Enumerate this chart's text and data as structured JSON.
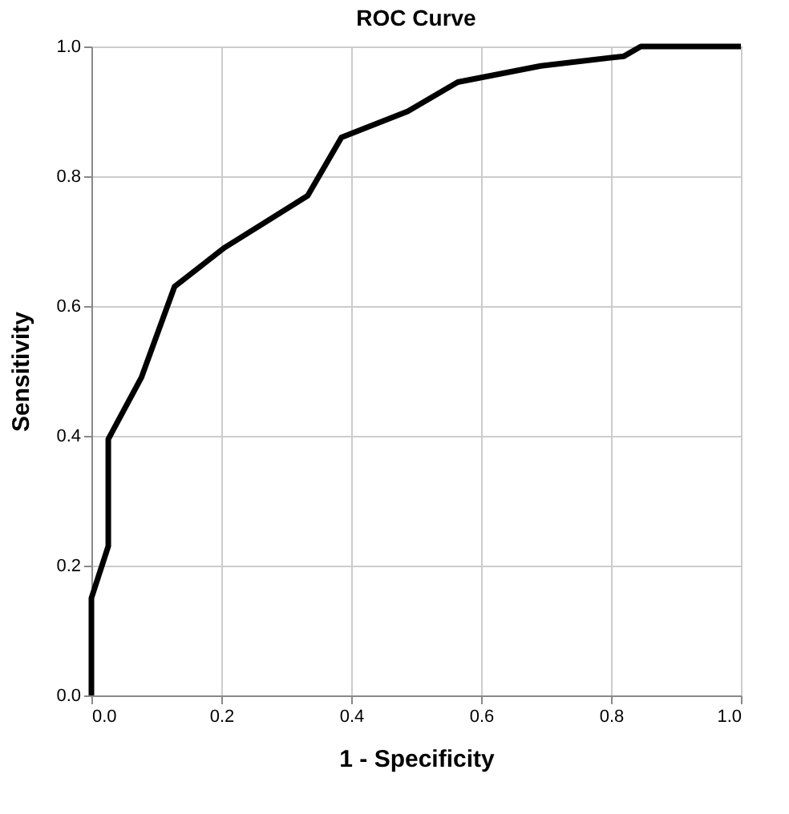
{
  "chart_data": {
    "type": "line",
    "title": "ROC Curve",
    "xlabel": "1 - Specificity",
    "ylabel": "Sensitivity",
    "x": [
      0,
      0,
      0.026,
      0.026,
      0.077,
      0.128,
      0.205,
      0.333,
      0.385,
      0.487,
      0.564,
      0.692,
      0.82,
      0.846,
      1.0
    ],
    "series": [
      {
        "color": "#000000",
        "values": [
          0,
          0.15,
          0.23,
          0.395,
          0.49,
          0.63,
          0.69,
          0.77,
          0.86,
          0.9,
          0.945,
          0.97,
          0.985,
          1.0,
          1.0
        ]
      }
    ],
    "xlim": [
      0,
      1
    ],
    "ylim": [
      0,
      1
    ],
    "xticks": [
      {
        "value": 0,
        "label": "0.0"
      },
      0.2,
      0.4,
      0.6,
      0.8,
      {
        "value": 1,
        "label": "1.0"
      }
    ],
    "yticks": [
      {
        "value": 0,
        "label": "0.0"
      },
      0.2,
      0.4,
      0.6,
      0.8,
      {
        "value": 1,
        "label": "1.0"
      }
    ],
    "grid": true,
    "marker": "none",
    "line_style": "solid"
  }
}
